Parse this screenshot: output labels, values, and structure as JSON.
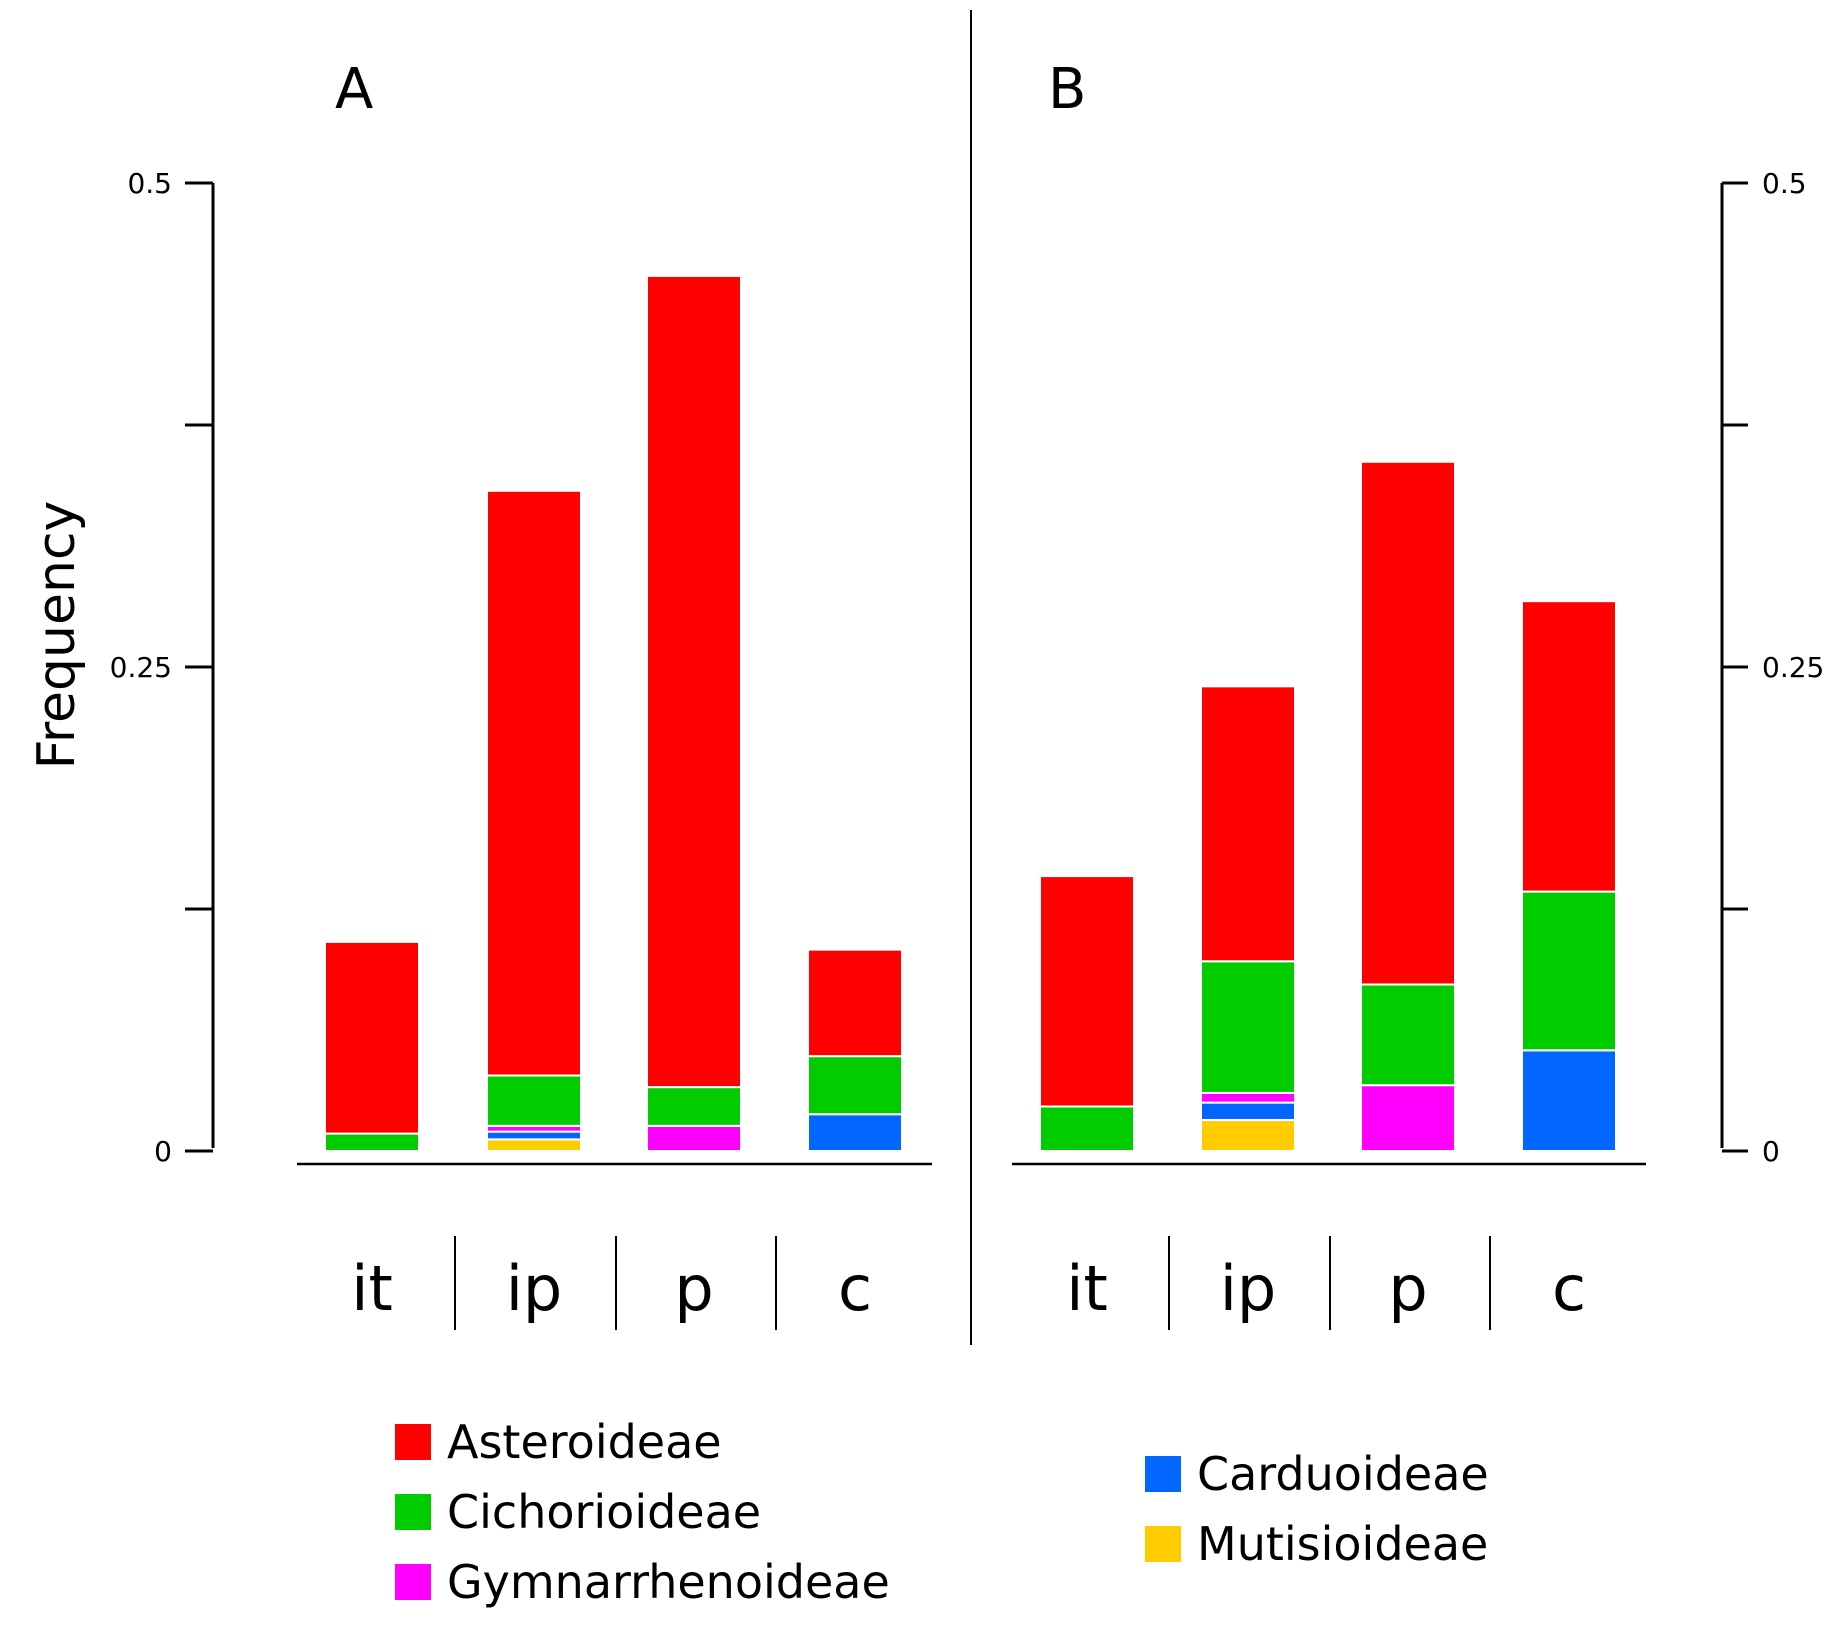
{
  "chart_data": {
    "type": "bar",
    "stacked": true,
    "ylabel": "Frequency",
    "categories": [
      "it",
      "ip",
      "p",
      "c"
    ],
    "yticks": [
      {
        "value": 0,
        "label": "0"
      },
      {
        "value": 0.125,
        "label": ""
      },
      {
        "value": 0.25,
        "label": "0.25"
      },
      {
        "value": 0.375,
        "label": ""
      },
      {
        "value": 0.5,
        "label": "0.5"
      }
    ],
    "ylim": [
      0,
      0.5
    ],
    "subfamilies": [
      {
        "name": "Mutisioideae",
        "color": "#ffcc00"
      },
      {
        "name": "Carduoideae",
        "color": "#0066ff"
      },
      {
        "name": "Gymnarrhenoideae",
        "color": "#ff00ff"
      },
      {
        "name": "Cichorioideae",
        "color": "#00cc00"
      },
      {
        "name": "Asteroideae",
        "color": "#ff0000"
      }
    ],
    "panels": [
      {
        "label": "A",
        "stacks": {
          "it": {
            "Mutisioideae": 0,
            "Carduoideae": 0,
            "Gymnarrhenoideae": 0,
            "Cichorioideae": 0.009,
            "Asteroideae": 0.099
          },
          "ip": {
            "Mutisioideae": 0.006,
            "Carduoideae": 0.004,
            "Gymnarrhenoideae": 0.003,
            "Cichorioideae": 0.026,
            "Asteroideae": 0.302
          },
          "p": {
            "Mutisioideae": 0,
            "Carduoideae": 0,
            "Gymnarrhenoideae": 0.013,
            "Cichorioideae": 0.02,
            "Asteroideae": 0.419
          },
          "c": {
            "Mutisioideae": 0,
            "Carduoideae": 0.019,
            "Gymnarrhenoideae": 0,
            "Cichorioideae": 0.03,
            "Asteroideae": 0.055
          }
        }
      },
      {
        "label": "B",
        "stacks": {
          "it": {
            "Mutisioideae": 0,
            "Carduoideae": 0,
            "Gymnarrhenoideae": 0,
            "Cichorioideae": 0.023,
            "Asteroideae": 0.119
          },
          "ip": {
            "Mutisioideae": 0.016,
            "Carduoideae": 0.009,
            "Gymnarrhenoideae": 0.005,
            "Cichorioideae": 0.068,
            "Asteroideae": 0.142
          },
          "p": {
            "Mutisioideae": 0,
            "Carduoideae": 0,
            "Gymnarrhenoideae": 0.034,
            "Cichorioideae": 0.052,
            "Asteroideae": 0.27
          },
          "c": {
            "Mutisioideae": 0,
            "Carduoideae": 0.052,
            "Gymnarrhenoideae": 0,
            "Cichorioideae": 0.082,
            "Asteroideae": 0.15
          }
        }
      }
    ],
    "legend": {
      "left": [
        "Asteroideae",
        "Cichorioideae",
        "Gymnarrhenoideae"
      ],
      "right": [
        "Carduoideae",
        "Mutisioideae"
      ]
    }
  }
}
